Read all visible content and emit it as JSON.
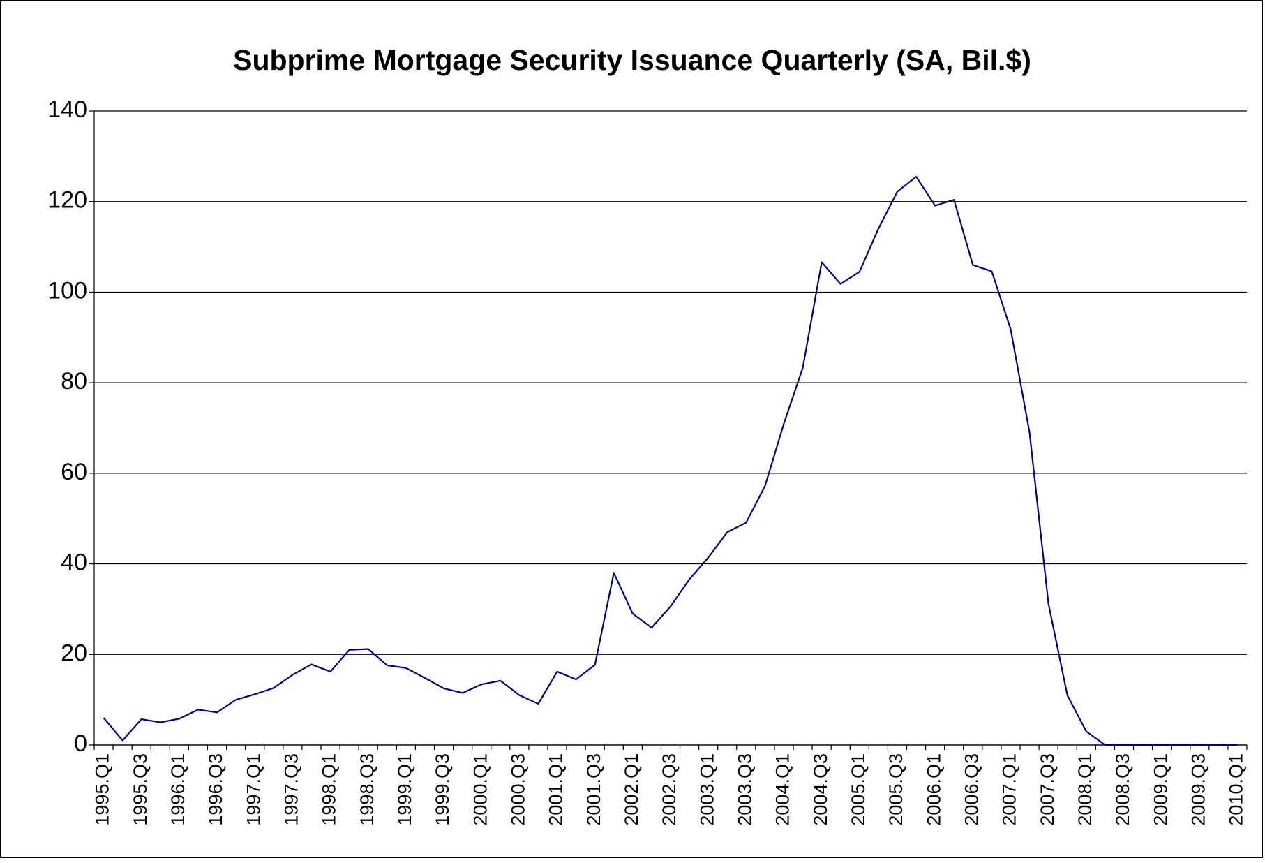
{
  "chart_data": {
    "type": "line",
    "title": "Subprime Mortgage Security Issuance Quarterly (SA, Bil.$)",
    "categories": [
      "1995.Q1",
      null,
      "1995.Q3",
      null,
      "1996.Q1",
      null,
      "1996.Q3",
      null,
      "1997.Q1",
      null,
      "1997.Q3",
      null,
      "1998.Q1",
      null,
      "1998.Q3",
      null,
      "1999.Q1",
      null,
      "1999.Q3",
      null,
      "2000.Q1",
      null,
      "2000.Q3",
      null,
      "2001.Q1",
      null,
      "2001.Q3",
      null,
      "2002.Q1",
      null,
      "2002.Q3",
      null,
      "2003.Q1",
      null,
      "2003.Q3",
      null,
      "2004.Q1",
      null,
      "2004.Q3",
      null,
      "2005.Q1",
      null,
      "2005.Q3",
      null,
      "2006.Q1",
      null,
      "2006.Q3",
      null,
      "2007.Q1",
      null,
      "2007.Q3",
      null,
      "2008.Q1",
      null,
      "2008.Q3",
      null,
      "2009.Q1",
      null,
      "2009.Q3",
      null,
      "2010.Q1"
    ],
    "series": [
      {
        "name": "Subprime Mortgage Security Issuance",
        "color": "#000080",
        "values": [
          6,
          1,
          5.7,
          5,
          5.8,
          7.8,
          7.2,
          10,
          11.2,
          12.6,
          15.5,
          17.8,
          16.2,
          21,
          21.2,
          17.6,
          17,
          14.8,
          12.5,
          11.5,
          13.4,
          14.2,
          11,
          9.1,
          16.2,
          14.5,
          17.7,
          38,
          29,
          25.9,
          30.6,
          36.6,
          41.4,
          47,
          49.1,
          57.2,
          71,
          83.3,
          106.6,
          101.8,
          104.5,
          114,
          122.2,
          125.5,
          119.1,
          120.4,
          106,
          104.6,
          91.8,
          69,
          31.2,
          11,
          3,
          0,
          0,
          0,
          0,
          0,
          0,
          0,
          0
        ]
      }
    ],
    "ylim": [
      0,
      140
    ],
    "yticks": [
      0,
      20,
      40,
      60,
      80,
      100,
      120,
      140
    ],
    "grid": true
  }
}
